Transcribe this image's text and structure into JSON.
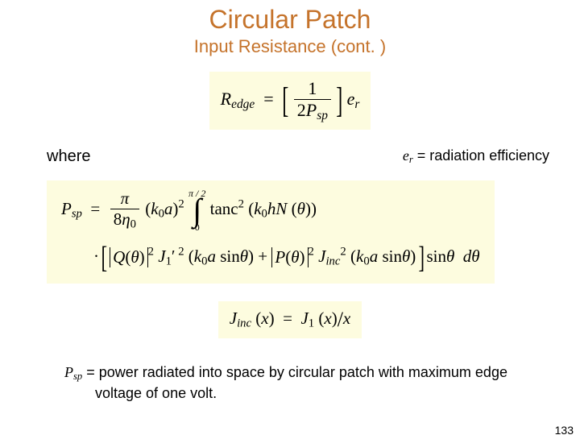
{
  "title": "Circular Patch",
  "subtitle": "Input Resistance (cont. )",
  "colors": {
    "heading": "#c5732b",
    "equation_bg": "#fdfcdf",
    "text": "#000000",
    "page_bg": "#ffffff"
  },
  "equations": {
    "eq1": {
      "lhs_symbol": "R",
      "lhs_sub": "edge",
      "bracket_num": "1",
      "bracket_den_lead": "2",
      "bracket_den_sym": "P",
      "bracket_den_sub": "sp",
      "trail_sym": "e",
      "trail_sub": "r"
    },
    "eq2": {
      "lhs_sym": "P",
      "lhs_sub": "sp",
      "frac_num": "π",
      "frac_den_lead": "8",
      "frac_den_sym": "η",
      "frac_den_sub": "0",
      "paren1_a": "k",
      "paren1_a_sub": "0",
      "paren1_b": "a",
      "exp1": "2",
      "int_upper": "π / 2",
      "int_lower": "0",
      "tanc": "tanc",
      "tanc_exp": "2",
      "tanc_arg_a": "k",
      "tanc_arg_a_sub": "0",
      "tanc_arg_b": "hN",
      "tanc_arg_c": "θ",
      "Q": "Q",
      "theta": "θ",
      "J1p": "J",
      "J1p_sub": "1",
      "J1p_prime": "′",
      "J1p_exp": "2",
      "J1p_arg_a": "k",
      "J1p_arg_a_sub": "0",
      "J1p_arg_b": "a",
      "sin": "sin",
      "P": "P",
      "Jinc": "J",
      "Jinc_sub": "inc",
      "Jinc_exp": "2",
      "trail_sin": "sin",
      "trail_d": "d",
      "trail_theta": "θ"
    },
    "eq3": {
      "lhs_sym": "J",
      "lhs_sub": "inc",
      "lhs_arg": "x",
      "rhs_num_sym": "J",
      "rhs_num_sub": "1",
      "rhs_num_arg": "x",
      "rhs_den": "x"
    }
  },
  "labels": {
    "where": "where",
    "er_sym": "e",
    "er_sub": "r",
    "er_eq": " = ",
    "er_text": "radiation efficiency",
    "psp_sym": "P",
    "psp_sub": "sp",
    "psp_eq": " = ",
    "psp_text": "power radiated into space by circular patch with maximum edge voltage of one volt."
  },
  "page_number": "133"
}
